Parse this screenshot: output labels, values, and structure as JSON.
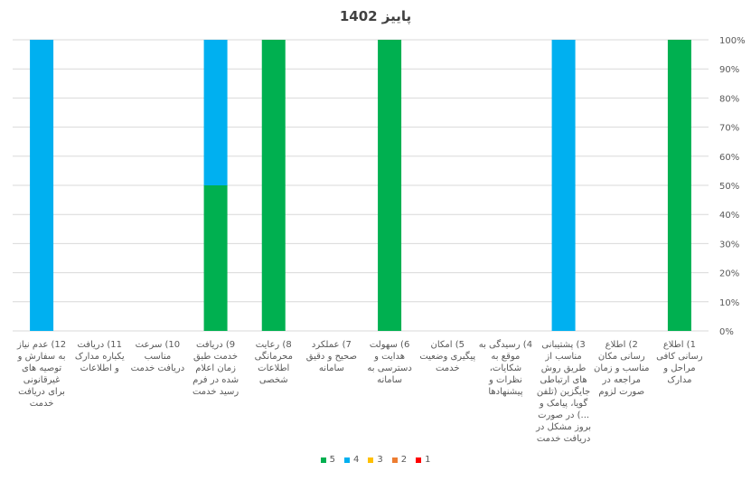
{
  "title": "پاییز 1402",
  "chart_data": {
    "type": "bar",
    "stacked": true,
    "title": "پاییز 1402",
    "ylim": [
      0,
      100
    ],
    "y_ticks": [
      "0%",
      "10%",
      "20%",
      "30%",
      "40%",
      "50%",
      "60%",
      "70%",
      "80%",
      "90%",
      "100%"
    ],
    "y_axis_position": "right",
    "x_direction": "right-to-left",
    "grid": true,
    "legend_position": "bottom",
    "categories": [
      "1) اطلاع رسانی کافی مراحل و مدارک",
      "2) اطلاع رسانی مکان مناسب و زمان مراجعه در صورت لزوم",
      "3) پشتیبانی مناسب از طریق روش های ارتباطی جایگزین (تلفن گویا، پیامک و ...) در صورت بروز مشکل در دریافت خدمت",
      "4) رسیدگی به موقع به شکایات، نظرات و پیشنهادها",
      "5) امکان پیگیری وضعیت خدمت",
      "6) سهولت هدایت و دسترسی به سامانه",
      "7) عملکرد صحیح و دقیق سامانه",
      "8) رعایت محرمانگی اطلاعات شخصی",
      "9) دریافت خدمت طبق زمان اعلام شده در فرم رسید خدمت",
      "10) سرعت مناسب دریافت خدمت",
      "11) دریافت یکباره مدارک و اطلاعات",
      "12) عدم نیاز به سفارش و توصیه های غیرقانونی برای دریافت خدمت"
    ],
    "series": [
      {
        "name": "5",
        "color": "#00b050",
        "values": [
          100,
          0,
          0,
          0,
          0,
          100,
          0,
          100,
          50,
          0,
          0,
          0
        ]
      },
      {
        "name": "4",
        "color": "#00b0f0",
        "values": [
          0,
          0,
          100,
          0,
          0,
          0,
          0,
          0,
          50,
          0,
          0,
          100
        ]
      },
      {
        "name": "3",
        "color": "#ffc000",
        "values": [
          0,
          0,
          0,
          0,
          0,
          0,
          0,
          0,
          0,
          0,
          0,
          0
        ]
      },
      {
        "name": "2",
        "color": "#ed7d31",
        "values": [
          0,
          0,
          0,
          0,
          0,
          0,
          0,
          0,
          0,
          0,
          0,
          0
        ]
      },
      {
        "name": "1",
        "color": "#ff0000",
        "values": [
          0,
          0,
          0,
          0,
          0,
          0,
          0,
          0,
          0,
          0,
          0,
          0
        ]
      }
    ]
  }
}
